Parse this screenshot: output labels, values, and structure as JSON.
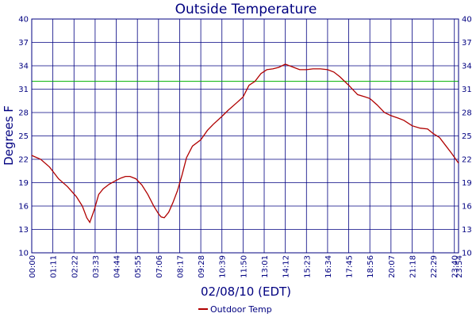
{
  "chart_data": {
    "type": "line",
    "title": "Outside Temperature",
    "xlabel": "02/08/10 (EDT)",
    "ylabel": "Degrees F",
    "ylim": [
      10,
      40
    ],
    "yticks": [
      "10",
      "13",
      "16",
      "19",
      "22",
      "25",
      "28",
      "31",
      "34",
      "37",
      "40"
    ],
    "xticks": [
      "00:00",
      "01:11",
      "02:22",
      "03:33",
      "04:44",
      "05:55",
      "07:06",
      "08:17",
      "09:28",
      "10:39",
      "11:50",
      "13:01",
      "14:12",
      "15:23",
      "16:34",
      "17:45",
      "18:56",
      "20:07",
      "21:18",
      "22:29",
      "23:40",
      "23:54"
    ],
    "grid": true,
    "reference_line": {
      "value": 32,
      "color": "#00b000"
    },
    "legend": {
      "position": "bottom-center"
    },
    "colors": {
      "line": "#b00000",
      "grid": "#000080",
      "axis": "#000080",
      "text": "#000080"
    },
    "series": [
      {
        "name": "Outdoor Temp",
        "x": [
          "00:00",
          "00:30",
          "01:00",
          "01:30",
          "02:00",
          "02:30",
          "02:50",
          "03:05",
          "03:15",
          "03:30",
          "03:45",
          "04:00",
          "04:20",
          "04:44",
          "05:00",
          "05:15",
          "05:30",
          "05:50",
          "06:10",
          "06:30",
          "06:50",
          "07:06",
          "07:15",
          "07:25",
          "07:40",
          "07:55",
          "08:10",
          "08:25",
          "08:40",
          "09:00",
          "09:28",
          "09:50",
          "10:10",
          "10:39",
          "11:00",
          "11:30",
          "11:50",
          "12:10",
          "12:30",
          "12:50",
          "13:10",
          "13:30",
          "13:50",
          "14:12",
          "14:40",
          "15:00",
          "15:23",
          "15:45",
          "16:10",
          "16:34",
          "16:55",
          "17:15",
          "17:45",
          "18:15",
          "18:40",
          "18:56",
          "19:20",
          "19:45",
          "20:07",
          "20:30",
          "20:50",
          "21:18",
          "21:45",
          "22:10",
          "22:29",
          "22:50",
          "23:10",
          "23:30",
          "23:54"
        ],
        "values": [
          22.5,
          22.0,
          21.0,
          19.5,
          18.5,
          17.2,
          16.0,
          14.5,
          13.9,
          15.5,
          17.5,
          18.2,
          18.8,
          19.3,
          19.6,
          19.8,
          19.8,
          19.5,
          18.7,
          17.5,
          16.0,
          15.0,
          14.6,
          14.5,
          15.2,
          16.5,
          18.0,
          20.0,
          22.2,
          23.7,
          24.5,
          25.7,
          26.5,
          27.5,
          28.3,
          29.3,
          30.0,
          31.5,
          32.0,
          33.0,
          33.5,
          33.6,
          33.8,
          34.2,
          33.8,
          33.5,
          33.5,
          33.6,
          33.6,
          33.5,
          33.2,
          32.6,
          31.5,
          30.3,
          30.0,
          29.8,
          29.0,
          28.0,
          27.6,
          27.3,
          27.0,
          26.3,
          26.0,
          25.9,
          25.3,
          24.8,
          23.8,
          22.8,
          21.5
        ]
      }
    ]
  }
}
